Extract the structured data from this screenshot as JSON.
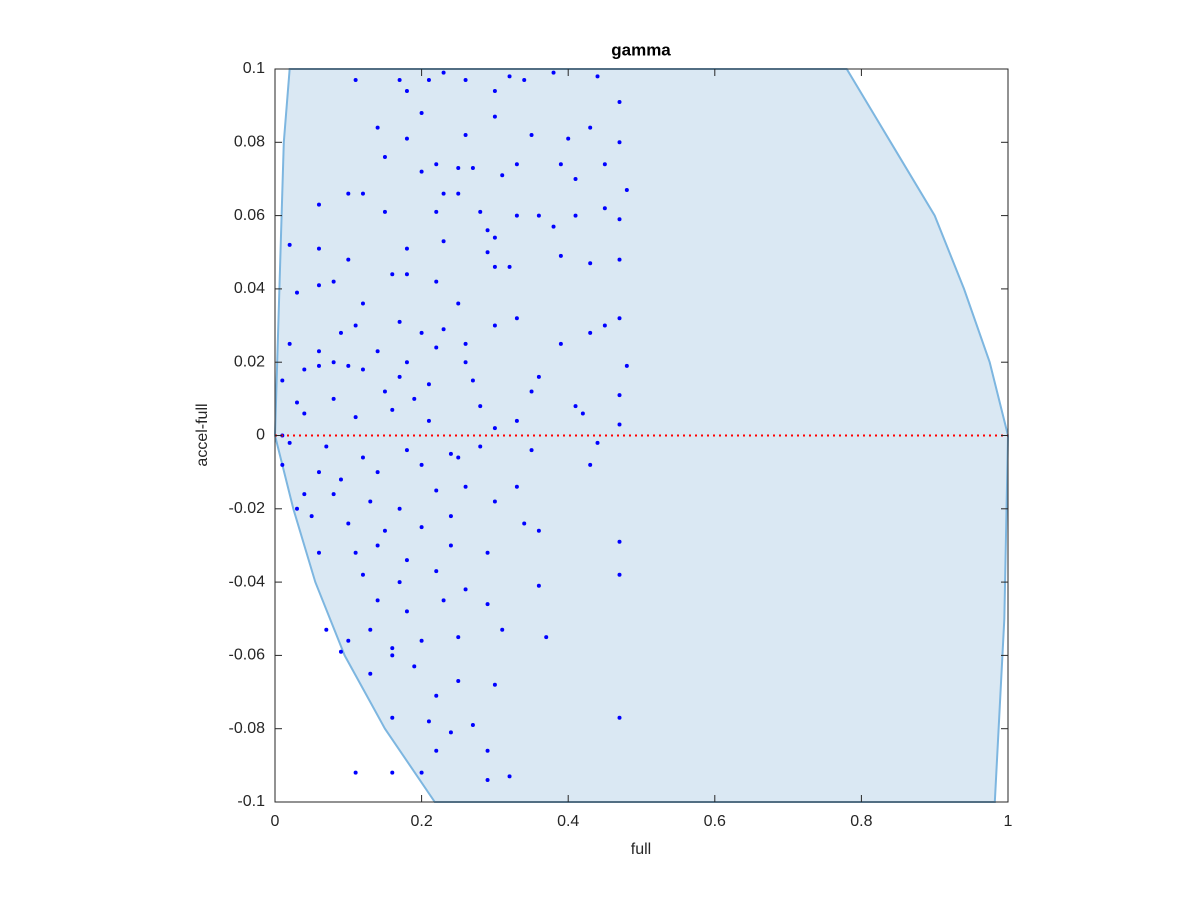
{
  "chart_data": {
    "type": "scatter",
    "title": "gamma",
    "x_label": "full",
    "y_label": "accel-full",
    "xlim": [
      0,
      1
    ],
    "ylim": [
      -0.1,
      0.1
    ],
    "xticks": [
      0,
      0.2,
      0.4,
      0.6,
      0.8,
      1
    ],
    "yticks": [
      -0.1,
      -0.08,
      -0.06,
      -0.04,
      -0.02,
      0,
      0.02,
      0.04,
      0.06,
      0.08,
      0.1
    ],
    "color": "#0000ff",
    "x": [
      0.11,
      0.17,
      0.18,
      0.21,
      0.23,
      0.26,
      0.3,
      0.32,
      0.34,
      0.38,
      0.44,
      0.47,
      0.14,
      0.18,
      0.2,
      0.26,
      0.3,
      0.35,
      0.4,
      0.43,
      0.47,
      0.15,
      0.2,
      0.22,
      0.25,
      0.27,
      0.31,
      0.33,
      0.39,
      0.41,
      0.45,
      0.1,
      0.12,
      0.23,
      0.25,
      0.28,
      0.33,
      0.36,
      0.41,
      0.45,
      0.48,
      0.06,
      0.15,
      0.22,
      0.29,
      0.3,
      0.38,
      0.47,
      0.06,
      0.02,
      0.1,
      0.18,
      0.23,
      0.29,
      0.39,
      0.43,
      0.47,
      0.03,
      0.06,
      0.08,
      0.12,
      0.16,
      0.18,
      0.22,
      0.25,
      0.3,
      0.32,
      0.11,
      0.17,
      0.2,
      0.23,
      0.26,
      0.3,
      0.33,
      0.43,
      0.45,
      0.47,
      0.02,
      0.06,
      0.08,
      0.09,
      0.14,
      0.18,
      0.22,
      0.26,
      0.39,
      0.01,
      0.04,
      0.06,
      0.1,
      0.12,
      0.17,
      0.21,
      0.27,
      0.36,
      0.48,
      0.03,
      0.08,
      0.15,
      0.19,
      0.28,
      0.35,
      0.41,
      0.47,
      0.01,
      0.04,
      0.11,
      0.16,
      0.21,
      0.3,
      0.33,
      0.42,
      0.47,
      0.02,
      0.07,
      0.12,
      0.18,
      0.24,
      0.28,
      0.35,
      0.44,
      0.01,
      0.06,
      0.09,
      0.14,
      0.2,
      0.25,
      0.43,
      0.04,
      0.08,
      0.13,
      0.17,
      0.22,
      0.26,
      0.33,
      0.36,
      0.03,
      0.05,
      0.1,
      0.15,
      0.2,
      0.24,
      0.3,
      0.34,
      0.06,
      0.11,
      0.14,
      0.18,
      0.24,
      0.29,
      0.12,
      0.17,
      0.22,
      0.26,
      0.36,
      0.47,
      0.47,
      0.14,
      0.18,
      0.23,
      0.29,
      0.07,
      0.1,
      0.13,
      0.16,
      0.2,
      0.25,
      0.31,
      0.37,
      0.09,
      0.16,
      0.19,
      0.25,
      0.3,
      0.13,
      0.22,
      0.16,
      0.21,
      0.27,
      0.47,
      0.24,
      0.22,
      0.29,
      0.11,
      0.16,
      0.2,
      0.29,
      0.32
    ],
    "values": [
      0.097,
      0.097,
      0.094,
      0.097,
      0.099,
      0.097,
      0.094,
      0.098,
      0.097,
      0.099,
      0.098,
      0.091,
      0.084,
      0.081,
      0.088,
      0.082,
      0.087,
      0.082,
      0.081,
      0.084,
      0.08,
      0.076,
      0.072,
      0.074,
      0.073,
      0.073,
      0.071,
      0.074,
      0.074,
      0.07,
      0.074,
      0.066,
      0.066,
      0.066,
      0.066,
      0.061,
      0.06,
      0.06,
      0.06,
      0.062,
      0.067,
      0.063,
      0.061,
      0.061,
      0.056,
      0.054,
      0.057,
      0.059,
      0.051,
      0.052,
      0.048,
      0.051,
      0.053,
      0.05,
      0.049,
      0.047,
      0.048,
      0.039,
      0.041,
      0.042,
      0.036,
      0.044,
      0.044,
      0.042,
      0.036,
      0.046,
      0.046,
      0.03,
      0.031,
      0.028,
      0.029,
      0.025,
      0.03,
      0.032,
      0.028,
      0.03,
      0.032,
      0.025,
      0.023,
      0.02,
      0.028,
      0.023,
      0.02,
      0.024,
      0.02,
      0.025,
      0.015,
      0.018,
      0.019,
      0.019,
      0.018,
      0.016,
      0.014,
      0.015,
      0.016,
      0.019,
      0.009,
      0.01,
      0.012,
      0.01,
      0.008,
      0.012,
      0.008,
      0.011,
      0.0,
      0.006,
      0.005,
      0.007,
      0.004,
      0.002,
      0.004,
      0.006,
      0.003,
      -0.002,
      -0.003,
      -0.006,
      -0.004,
      -0.005,
      -0.003,
      -0.004,
      -0.002,
      -0.008,
      -0.01,
      -0.012,
      -0.01,
      -0.008,
      -0.006,
      -0.008,
      -0.016,
      -0.016,
      -0.018,
      -0.02,
      -0.015,
      -0.014,
      -0.014,
      -0.026,
      -0.02,
      -0.022,
      -0.024,
      -0.026,
      -0.025,
      -0.022,
      -0.018,
      -0.024,
      -0.032,
      -0.032,
      -0.03,
      -0.034,
      -0.03,
      -0.032,
      -0.038,
      -0.04,
      -0.037,
      -0.042,
      -0.041,
      -0.038,
      -0.029,
      -0.045,
      -0.048,
      -0.045,
      -0.046,
      -0.053,
      -0.056,
      -0.053,
      -0.058,
      -0.056,
      -0.055,
      -0.053,
      -0.055,
      -0.059,
      -0.06,
      -0.063,
      -0.067,
      -0.068,
      -0.065,
      -0.071,
      -0.077,
      -0.078,
      -0.079,
      -0.077,
      -0.081,
      -0.086,
      -0.086,
      -0.092,
      -0.092,
      -0.092,
      -0.094,
      -0.093
    ],
    "patch": {
      "color": "#dae8f3",
      "edgecolor": "#7db6e0",
      "x": [
        0.02,
        0.78,
        0.84,
        0.9,
        0.94,
        0.975,
        1,
        0.995,
        0.982,
        0.218,
        0.15,
        0.095,
        0.055,
        0.025,
        0,
        0.006,
        0.012
      ],
      "y": [
        0.1,
        0.1,
        0.08,
        0.06,
        0.04,
        0.02,
        0,
        -0.05,
        -0.1,
        -0.1,
        -0.08,
        -0.06,
        -0.04,
        -0.02,
        0,
        0.04,
        0.08
      ]
    },
    "refline": {
      "y": 0,
      "color": "#ff0000"
    }
  }
}
